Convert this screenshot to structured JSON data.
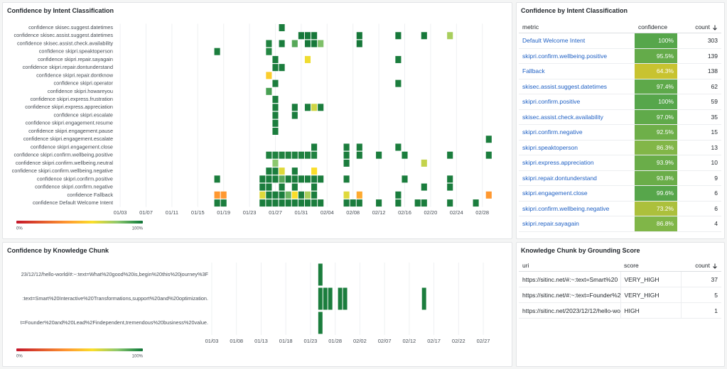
{
  "intent_heatmap": {
    "type": "heatmap",
    "title": "Confidence by Intent Classification",
    "xlim": [
      "01/02",
      "03/03"
    ],
    "xticks": [
      "01/03",
      "01/07",
      "01/11",
      "01/15",
      "01/19",
      "01/23",
      "01/27",
      "01/31",
      "02/04",
      "02/08",
      "02/12",
      "02/16",
      "02/20",
      "02/24",
      "02/28"
    ],
    "grid": true,
    "scale_labels": [
      "0%",
      "100%"
    ],
    "rows": [
      {
        "label": "confidence skisec.suggest.datetimes",
        "cells": [
          [
            "01/28",
            98
          ]
        ]
      },
      {
        "label": "confidence skisec.assist.suggest.datetimes",
        "cells": [
          [
            "01/31",
            99
          ],
          [
            "02/01",
            99
          ],
          [
            "02/02",
            99
          ],
          [
            "02/09",
            99
          ],
          [
            "02/15",
            99
          ],
          [
            "02/19",
            99
          ],
          [
            "02/23",
            75
          ]
        ]
      },
      {
        "label": "confidence skisec.assist.check.availability",
        "cells": [
          [
            "01/26",
            97
          ],
          [
            "01/28",
            98
          ],
          [
            "01/30",
            88
          ],
          [
            "02/01",
            99
          ],
          [
            "02/02",
            99
          ],
          [
            "02/03",
            82
          ],
          [
            "02/09",
            99
          ]
        ]
      },
      {
        "label": "confidence skipri.speaktoperson",
        "cells": [
          [
            "01/18",
            98
          ],
          [
            "01/26",
            96
          ]
        ]
      },
      {
        "label": "confidence skipri.repair.sayagain",
        "cells": [
          [
            "01/27",
            98
          ],
          [
            "02/01",
            62
          ],
          [
            "02/15",
            98
          ]
        ]
      },
      {
        "label": "confidence skipri.repair.dontunderstand",
        "cells": [
          [
            "01/27",
            98
          ],
          [
            "01/28",
            98
          ]
        ]
      },
      {
        "label": "confidence skipri.repair.dontknow",
        "cells": [
          [
            "01/26",
            55
          ]
        ]
      },
      {
        "label": "confidence skipri.operator",
        "cells": [
          [
            "01/27",
            98
          ],
          [
            "02/15",
            98
          ]
        ]
      },
      {
        "label": "confidence skipri.howareyou",
        "cells": [
          [
            "01/26",
            90
          ]
        ]
      },
      {
        "label": "confidence skipri.express.frustration",
        "cells": [
          [
            "01/27",
            98
          ]
        ]
      },
      {
        "label": "confidence skipri.express.appreciation",
        "cells": [
          [
            "01/27",
            98
          ],
          [
            "01/30",
            98
          ],
          [
            "02/01",
            98
          ],
          [
            "02/02",
            68
          ],
          [
            "02/03",
            98
          ]
        ]
      },
      {
        "label": "confidence skipri.escalate",
        "cells": [
          [
            "01/27",
            98
          ],
          [
            "01/30",
            98
          ]
        ]
      },
      {
        "label": "confidence skipri.engagement.resume",
        "cells": [
          [
            "01/27",
            98
          ]
        ]
      },
      {
        "label": "confidence skipri.engagement.pause",
        "cells": [
          [
            "01/27",
            98
          ]
        ]
      },
      {
        "label": "confidence skipri.engagement.escalate",
        "cells": [
          [
            "03/01",
            98
          ]
        ]
      },
      {
        "label": "confidence skipri.engagement.close",
        "cells": [
          [
            "02/02",
            98
          ],
          [
            "02/07",
            98
          ],
          [
            "02/09",
            98
          ],
          [
            "02/15",
            98
          ]
        ]
      },
      {
        "label": "confidence skipri.confirm.wellbeing.positive",
        "cells": [
          [
            "01/26",
            97
          ],
          [
            "01/27",
            97
          ],
          [
            "01/28",
            97
          ],
          [
            "01/29",
            97
          ],
          [
            "01/30",
            97
          ],
          [
            "01/31",
            97
          ],
          [
            "02/01",
            97
          ],
          [
            "02/02",
            97
          ],
          [
            "02/07",
            98
          ],
          [
            "02/09",
            98
          ],
          [
            "02/12",
            98
          ],
          [
            "02/16",
            98
          ],
          [
            "02/23",
            98
          ],
          [
            "03/01",
            98
          ]
        ]
      },
      {
        "label": "confidence skipri.confirm.wellbeing.neutral",
        "cells": [
          [
            "01/27",
            80
          ],
          [
            "02/07",
            98
          ],
          [
            "02/19",
            70
          ]
        ]
      },
      {
        "label": "confidence skipri.confirm.wellbeing.negative",
        "cells": [
          [
            "01/26",
            98
          ],
          [
            "01/27",
            98
          ],
          [
            "01/28",
            65
          ],
          [
            "01/30",
            98
          ],
          [
            "02/02",
            60
          ]
        ]
      },
      {
        "label": "confidence skipri.confirm.positive",
        "cells": [
          [
            "01/18",
            98
          ],
          [
            "01/25",
            98
          ],
          [
            "01/26",
            98
          ],
          [
            "01/27",
            98
          ],
          [
            "01/28",
            88
          ],
          [
            "01/29",
            98
          ],
          [
            "01/30",
            98
          ],
          [
            "01/31",
            98
          ],
          [
            "02/01",
            98
          ],
          [
            "02/02",
            98
          ],
          [
            "02/03",
            98
          ],
          [
            "02/07",
            98
          ],
          [
            "02/16",
            98
          ],
          [
            "02/23",
            98
          ]
        ]
      },
      {
        "label": "confidence skipri.confirm.negative",
        "cells": [
          [
            "01/25",
            98
          ],
          [
            "01/26",
            98
          ],
          [
            "01/28",
            98
          ],
          [
            "01/30",
            98
          ],
          [
            "02/02",
            98
          ],
          [
            "02/19",
            98
          ],
          [
            "02/23",
            98
          ]
        ]
      },
      {
        "label": "confidence Fallback",
        "cells": [
          [
            "01/18",
            40
          ],
          [
            "01/19",
            40
          ],
          [
            "01/25",
            65
          ],
          [
            "01/26",
            98
          ],
          [
            "01/27",
            98
          ],
          [
            "01/28",
            98
          ],
          [
            "01/29",
            85
          ],
          [
            "01/30",
            60
          ],
          [
            "01/31",
            98
          ],
          [
            "02/01",
            75
          ],
          [
            "02/02",
            98
          ],
          [
            "02/07",
            65
          ],
          [
            "02/09",
            45
          ],
          [
            "02/15",
            98
          ],
          [
            "03/01",
            40
          ]
        ]
      },
      {
        "label": "confidence Default Welcome Intent",
        "cells": [
          [
            "01/18",
            98
          ],
          [
            "01/19",
            98
          ],
          [
            "01/25",
            98
          ],
          [
            "01/26",
            98
          ],
          [
            "01/27",
            98
          ],
          [
            "01/28",
            98
          ],
          [
            "01/29",
            98
          ],
          [
            "01/30",
            98
          ],
          [
            "01/31",
            98
          ],
          [
            "02/01",
            98
          ],
          [
            "02/02",
            98
          ],
          [
            "02/03",
            98
          ],
          [
            "02/07",
            98
          ],
          [
            "02/08",
            98
          ],
          [
            "02/09",
            98
          ],
          [
            "02/12",
            98
          ],
          [
            "02/15",
            98
          ],
          [
            "02/18",
            98
          ],
          [
            "02/19",
            98
          ],
          [
            "02/23",
            98
          ],
          [
            "02/27",
            98
          ]
        ]
      }
    ]
  },
  "intent_table": {
    "title": "Confidence by Intent Classification",
    "columns": [
      "metric",
      "confidence",
      "count"
    ],
    "rows": [
      {
        "metric": "Default Welcome Intent",
        "confidence": {
          "value": 100,
          "label": "100%"
        },
        "count": 303
      },
      {
        "metric": "skipri.confirm.wellbeing.positive",
        "confidence": {
          "value": 95.5,
          "label": "95.5%"
        },
        "count": 139
      },
      {
        "metric": "Fallback",
        "confidence": {
          "value": 64.3,
          "label": "64.3%"
        },
        "count": 138
      },
      {
        "metric": "skisec.assist.suggest.datetimes",
        "confidence": {
          "value": 97.4,
          "label": "97.4%"
        },
        "count": 62
      },
      {
        "metric": "skipri.confirm.positive",
        "confidence": {
          "value": 100,
          "label": "100%"
        },
        "count": 59
      },
      {
        "metric": "skisec.assist.check.availability",
        "confidence": {
          "value": 97.0,
          "label": "97.0%"
        },
        "count": 35
      },
      {
        "metric": "skipri.confirm.negative",
        "confidence": {
          "value": 92.5,
          "label": "92.5%"
        },
        "count": 15
      },
      {
        "metric": "skipri.speaktoperson",
        "confidence": {
          "value": 86.3,
          "label": "86.3%"
        },
        "count": 13
      },
      {
        "metric": "skipri.express.appreciation",
        "confidence": {
          "value": 93.9,
          "label": "93.9%"
        },
        "count": 10
      },
      {
        "metric": "skipri.repair.dontunderstand",
        "confidence": {
          "value": 93.8,
          "label": "93.8%"
        },
        "count": 9
      },
      {
        "metric": "skipri.engagement.close",
        "confidence": {
          "value": 99.6,
          "label": "99.6%"
        },
        "count": 6
      },
      {
        "metric": "skipri.confirm.wellbeing.negative",
        "confidence": {
          "value": 73.2,
          "label": "73.2%"
        },
        "count": 6
      },
      {
        "metric": "skipri.repair.sayagain",
        "confidence": {
          "value": 86.8,
          "label": "86.8%"
        },
        "count": 4
      }
    ]
  },
  "chunk_heatmap": {
    "type": "heatmap",
    "title": "Confidence by Knowledge Chunk",
    "xlim": [
      "01/03",
      "02/28"
    ],
    "xticks": [
      "01/03",
      "01/08",
      "01/13",
      "01/18",
      "01/23",
      "01/28",
      "02/02",
      "02/07",
      "02/12",
      "02/17",
      "02/22",
      "02/27"
    ],
    "grid": true,
    "scale_labels": [
      "0%",
      "100%"
    ],
    "rows": [
      {
        "label": "23/12/12/hello-world/#:~:text=What%20good%20is,begin%20this%20journey%3F",
        "cells": [
          [
            "01/25",
            98
          ]
        ]
      },
      {
        "label": ":text=Smart%20Interactive%20Transformations,support%20and%20optimization.",
        "cells": [
          [
            "01/25",
            98
          ],
          [
            "01/26",
            98
          ],
          [
            "01/27",
            98
          ],
          [
            "01/29",
            98
          ],
          [
            "01/30",
            98
          ],
          [
            "02/15",
            98
          ]
        ]
      },
      {
        "label": "t=Founder%20and%20Lead%2Findependent,tremendous%20business%20value.",
        "cells": [
          [
            "01/25",
            98
          ]
        ]
      }
    ]
  },
  "chunk_table": {
    "title": "Knowledge Chunk by Grounding Score",
    "columns": [
      "uri",
      "score",
      "count"
    ],
    "rows": [
      {
        "uri": "https://sitinc.net/#:~:text=Smart%20",
        "score": "VERY_HIGH",
        "count": 37
      },
      {
        "uri": "https://sitinc.net/#:~:text=Founder%2",
        "score": "VERY_HIGH",
        "count": 5
      },
      {
        "uri": "https://sitinc.net/2023/12/12/hello-wo",
        "score": "HIGH",
        "count": 1
      }
    ]
  }
}
